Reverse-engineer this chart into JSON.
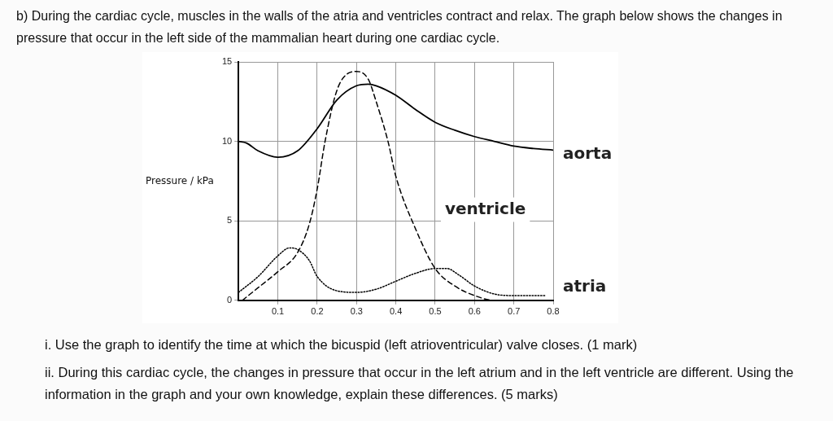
{
  "chart_data": {
    "type": "line",
    "title": "b)   During the cardiac cycle, muscles in the walls of the atria and ventricles contract and relax. The graph below shows the changes in pressure that occur in the left side of the mammalian heart during one cardiac cycle.",
    "ylabel": "Pressure / kPa",
    "xlim": [
      0,
      0.8
    ],
    "xticks": [
      0.1,
      0.2,
      0.3,
      0.4,
      0.5,
      0.6,
      0.7,
      0.8
    ],
    "ylim": [
      0,
      15
    ],
    "yticks": [
      0,
      5,
      10,
      15
    ],
    "grid": true,
    "legend": false,
    "marker": "none",
    "series": [
      {
        "name": "aorta",
        "color": "#000000",
        "line_style": "solid",
        "x": [
          0,
          0.02,
          0.05,
          0.1,
          0.15,
          0.2,
          0.25,
          0.3,
          0.33,
          0.35,
          0.4,
          0.45,
          0.5,
          0.55,
          0.6,
          0.65,
          0.7,
          0.75,
          0.8
        ],
        "values": [
          10,
          9.9,
          9.4,
          9.0,
          9.4,
          10.8,
          12.6,
          13.5,
          13.6,
          13.5,
          12.9,
          12.0,
          11.2,
          10.7,
          10.3,
          10.0,
          9.7,
          9.55,
          9.45
        ]
      },
      {
        "name": "ventricle",
        "color": "#000000",
        "line_style": "dashed",
        "x": [
          0.01,
          0.05,
          0.1,
          0.15,
          0.18,
          0.2,
          0.22,
          0.25,
          0.28,
          0.3,
          0.33,
          0.35,
          0.38,
          0.4,
          0.45,
          0.5,
          0.55,
          0.6,
          0.65,
          0.7
        ],
        "values": [
          0,
          0.8,
          1.8,
          3.0,
          4.8,
          7.0,
          10,
          13.2,
          14.3,
          14.4,
          13.9,
          12.5,
          10,
          7.8,
          4.5,
          2.0,
          0.9,
          0.3,
          0,
          0
        ]
      },
      {
        "name": "atria",
        "color": "#000000",
        "line_style": "dotted",
        "x": [
          0,
          0.05,
          0.1,
          0.13,
          0.15,
          0.18,
          0.2,
          0.25,
          0.3,
          0.35,
          0.4,
          0.45,
          0.5,
          0.53,
          0.56,
          0.6,
          0.65,
          0.7,
          0.78
        ],
        "values": [
          0.5,
          1.5,
          2.8,
          3.3,
          3.2,
          2.5,
          1.5,
          0.6,
          0.5,
          0.7,
          1.2,
          1.7,
          2.0,
          2.0,
          1.6,
          0.9,
          0.4,
          0.3,
          0.3
        ]
      }
    ],
    "annotations": [
      "i.   Use the graph to identify the time at which the bicuspid (left atrioventricular) valve closes.   (1 mark)",
      "ii.   During this cardiac cycle, the changes in pressure that occur in the left atrium and in the left ventricle are different.  Using the information in the graph and your own knowledge, explain these differences.   (5 marks)"
    ]
  }
}
